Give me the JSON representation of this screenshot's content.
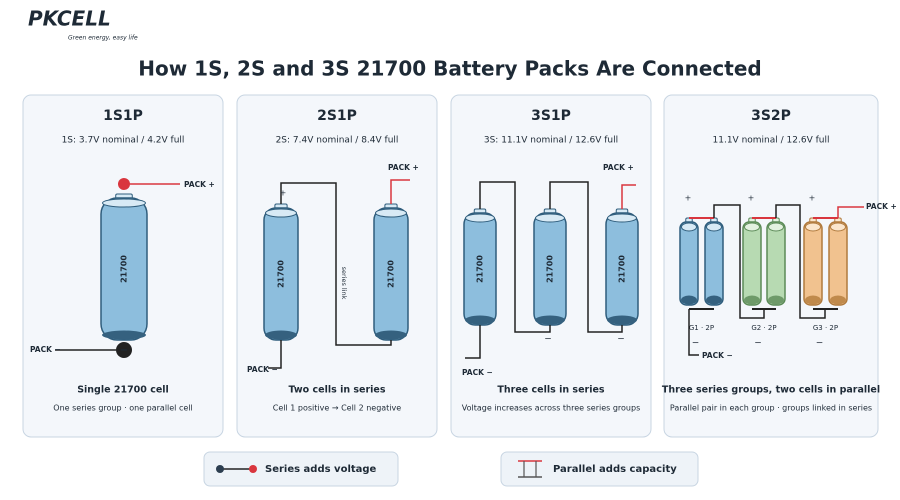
{
  "logo": {
    "name": "PKCELL",
    "tagline": "Green energy, easy life"
  },
  "title": "How 1S, 2S and 3S 21700 Battery Packs Are Connected",
  "symbols": {
    "plus": "+",
    "minus": "−"
  },
  "panels": [
    {
      "title": "1S1P",
      "spec": "1S: 3.7V nominal / 4.2V full",
      "pack_positive": "PACK +",
      "pack_negative": "PACK −",
      "cell_label": "21700",
      "caption": "Single 21700 cell",
      "note": "One series group · one parallel cell"
    },
    {
      "title": "2S1P",
      "spec": "2S: 7.4V nominal / 8.4V full",
      "pack_positive": "PACK +",
      "pack_negative": "PACK −",
      "cell_label": "21700",
      "link_label": "series link",
      "caption": "Two cells in series",
      "note": "Cell 1 positive → Cell 2 negative"
    },
    {
      "title": "3S1P",
      "spec": "3S: 11.1V nominal / 12.6V full",
      "pack_positive": "PACK +",
      "pack_negative": "PACK −",
      "cell_label": "21700",
      "caption": "Three cells in series",
      "note": "Voltage increases across three series groups"
    },
    {
      "title": "3S2P",
      "spec": "11.1V nominal / 12.6V full",
      "pack_positive": "PACK +",
      "pack_negative": "PACK −",
      "groups": [
        "G1 · 2P",
        "G2 · 2P",
        "G3 · 2P"
      ],
      "caption": "Three series groups, two cells in parallel",
      "note": "Parallel pair in each group · groups linked in series"
    }
  ],
  "legend": [
    "Series adds voltage",
    "Parallel adds capacity"
  ]
}
